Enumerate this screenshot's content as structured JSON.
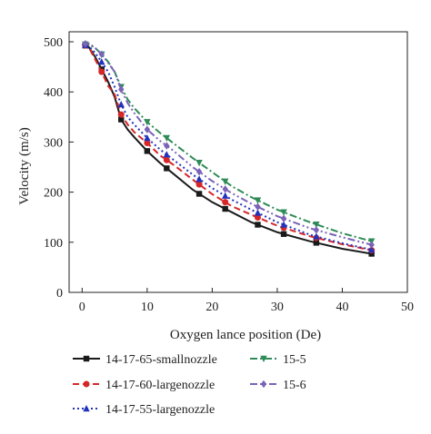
{
  "chart_data": {
    "type": "line",
    "xlabel": "Oxygen lance position (De)",
    "ylabel": "Velocity (m/s)",
    "xlim": [
      -2,
      50
    ],
    "ylim": [
      0,
      520
    ],
    "xticks": [
      0,
      10,
      20,
      30,
      40,
      50
    ],
    "yticks": [
      0,
      100,
      200,
      300,
      400,
      500
    ],
    "legend": "bottom",
    "series": [
      {
        "name": "14-17-65-smallnozzle",
        "color": "#1a1a1a",
        "dash": "solid",
        "marker": "square",
        "x": [
          0,
          1,
          2,
          3,
          4,
          5,
          6,
          7,
          8,
          10,
          12,
          14,
          17,
          20,
          23,
          26,
          30,
          35,
          40,
          44.5
        ],
        "y": [
          495,
          490,
          470,
          445,
          420,
          390,
          345,
          325,
          310,
          282,
          258,
          237,
          205,
          180,
          160,
          140,
          120,
          102,
          87,
          77
        ],
        "markers_x": [
          0.5,
          3,
          6,
          10,
          13,
          18,
          22,
          27,
          31,
          36,
          44.5
        ]
      },
      {
        "name": "14-17-60-largenozzle",
        "color": "#d62728",
        "dash": "dash",
        "marker": "circle",
        "x": [
          0,
          1,
          2,
          3,
          4,
          5,
          6,
          7,
          8,
          10,
          12,
          14,
          17,
          20,
          23,
          26,
          30,
          35,
          40,
          44.5
        ],
        "y": [
          495,
          490,
          465,
          440,
          412,
          395,
          355,
          335,
          320,
          298,
          273,
          255,
          225,
          196,
          172,
          155,
          133,
          112,
          96,
          84
        ],
        "markers_x": [
          0.5,
          3,
          6,
          10,
          13,
          18,
          22,
          27,
          31,
          36,
          44.5
        ]
      },
      {
        "name": "14-17-55-largenozzle",
        "color": "#2233bb",
        "dash": "dot",
        "marker": "triangle-up",
        "x": [
          0,
          1,
          2,
          3,
          4,
          5,
          6,
          7,
          8,
          10,
          12,
          14,
          17,
          20,
          23,
          26,
          30,
          35,
          40,
          44.5
        ],
        "y": [
          495,
          492,
          478,
          460,
          440,
          410,
          375,
          350,
          335,
          308,
          285,
          265,
          235,
          208,
          185,
          165,
          140,
          115,
          98,
          85
        ],
        "markers_x": [
          0.5,
          3,
          6,
          10,
          13,
          18,
          22,
          27,
          31,
          36,
          44.5
        ]
      },
      {
        "name": "15-5",
        "color": "#2e8b57",
        "dash": "dashdot",
        "marker": "triangle-down",
        "x": [
          0,
          1,
          2,
          3,
          4,
          5,
          6,
          7,
          8,
          10,
          12,
          14,
          17,
          20,
          23,
          26,
          30,
          35,
          40,
          44.5
        ],
        "y": [
          495,
          495,
          488,
          475,
          460,
          440,
          410,
          385,
          368,
          340,
          318,
          298,
          268,
          240,
          212,
          190,
          165,
          140,
          118,
          102
        ],
        "markers_x": [
          0.5,
          3,
          6,
          10,
          13,
          18,
          22,
          27,
          31,
          36,
          44.5
        ]
      },
      {
        "name": "15-6",
        "color": "#7a63b8",
        "dash": "dashdotdot",
        "marker": "diamond",
        "x": [
          0,
          1,
          2,
          3,
          4,
          5,
          6,
          7,
          8,
          10,
          12,
          14,
          17,
          20,
          23,
          26,
          30,
          35,
          40,
          44.5
        ],
        "y": [
          495,
          497,
          488,
          475,
          458,
          440,
          405,
          378,
          358,
          325,
          302,
          283,
          250,
          222,
          198,
          177,
          152,
          128,
          110,
          95
        ],
        "markers_x": [
          0.5,
          3,
          6,
          10,
          13,
          18,
          22,
          27,
          31,
          36,
          44.5
        ]
      }
    ]
  }
}
